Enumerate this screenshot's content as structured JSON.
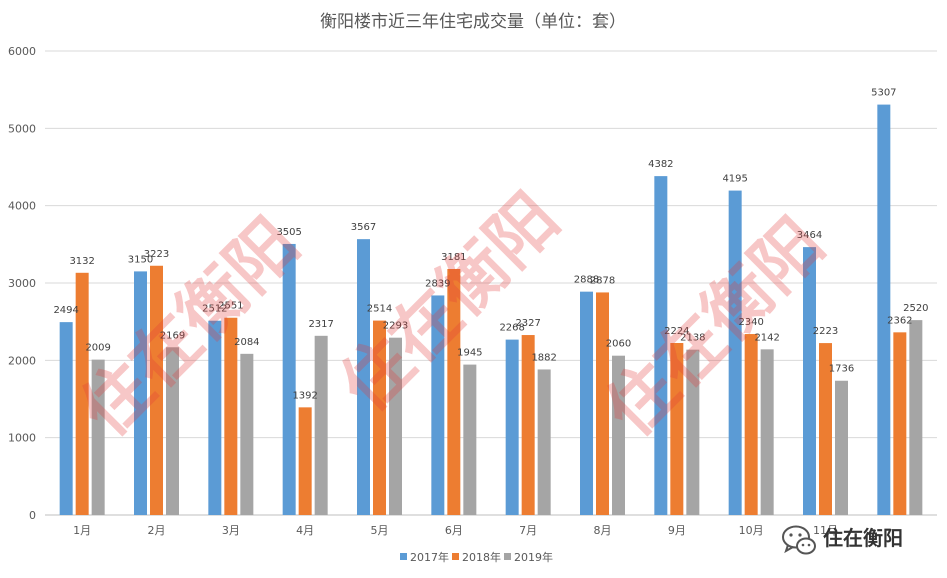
{
  "chart_data": {
    "type": "bar",
    "title": "衡阳楼市近三年住宅成交量（单位：套）",
    "categories": [
      "1月",
      "2月",
      "3月",
      "4月",
      "5月",
      "6月",
      "7月",
      "8月",
      "9月",
      "10月",
      "11月",
      ""
    ],
    "series": [
      {
        "name": "2017年",
        "color": "#5b9bd5",
        "values": [
          2494,
          3150,
          2512,
          3505,
          3567,
          2839,
          2268,
          2888,
          4382,
          4195,
          3464,
          5307
        ]
      },
      {
        "name": "2018年",
        "color": "#ed7d31",
        "values": [
          3132,
          3223,
          2551,
          1392,
          2514,
          3181,
          2327,
          2878,
          2224,
          2340,
          2223,
          2362
        ]
      },
      {
        "name": "2019年",
        "color": "#a5a5a5",
        "values": [
          2009,
          2169,
          2084,
          2317,
          2293,
          1945,
          1882,
          2060,
          2138,
          2142,
          1736,
          2520
        ]
      }
    ],
    "ylim": [
      0,
      6000
    ],
    "yticks": [
      0,
      1000,
      2000,
      3000,
      4000,
      5000,
      6000
    ],
    "grid": true,
    "legend_position": "bottom-center",
    "xlabel": "",
    "ylabel": ""
  },
  "watermark": {
    "text": "住在衡阳",
    "color": "#e33b3b"
  },
  "brand": {
    "label": "住在衡阳",
    "icon": "wechat-icon"
  }
}
